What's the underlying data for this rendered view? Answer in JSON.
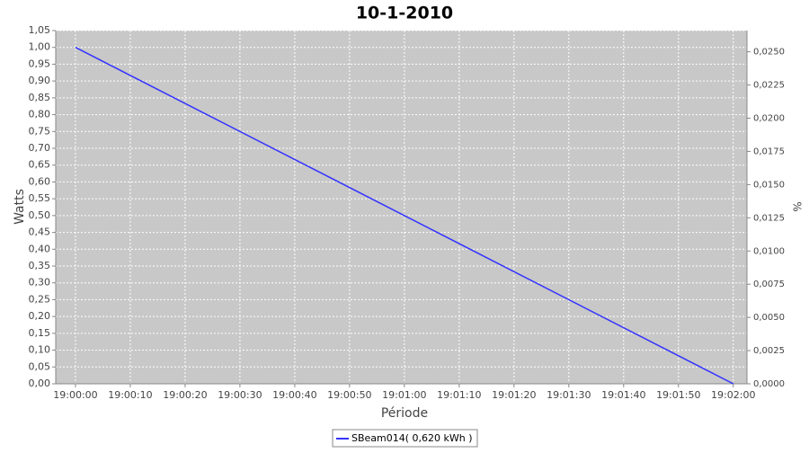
{
  "chart_data": {
    "type": "line",
    "title": "10-1-2010",
    "x_label": "Période",
    "y_label": "Watts",
    "y2_label": "%",
    "x": [
      "19:00:00",
      "19:02:00"
    ],
    "series": [
      {
        "name": "SBeam014( 0,620 kWh )",
        "color": "#3333ff",
        "values": [
          1.0,
          0.0
        ]
      }
    ],
    "xlim": [
      "18:59:56.4",
      "19:02:02.5"
    ],
    "xticks": [
      "19:00:00",
      "19:00:10",
      "19:00:20",
      "19:00:30",
      "19:00:40",
      "19:00:50",
      "19:01:00",
      "19:01:10",
      "19:01:20",
      "19:01:30",
      "19:01:40",
      "19:01:50",
      "19:02:00"
    ],
    "ylim": [
      0,
      1.05
    ],
    "yticks": [
      {
        "value": 0,
        "label": "0,00"
      },
      {
        "value": 0.05,
        "label": "0,05"
      },
      {
        "value": 0.1,
        "label": "0,10"
      },
      {
        "value": 0.15,
        "label": "0,15"
      },
      {
        "value": 0.2,
        "label": "0,20"
      },
      {
        "value": 0.25,
        "label": "0,25"
      },
      {
        "value": 0.3,
        "label": "0,30"
      },
      {
        "value": 0.35,
        "label": "0,35"
      },
      {
        "value": 0.4,
        "label": "0,40"
      },
      {
        "value": 0.45,
        "label": "0,45"
      },
      {
        "value": 0.5,
        "label": "0,50"
      },
      {
        "value": 0.55,
        "label": "0,55"
      },
      {
        "value": 0.6,
        "label": "0,60"
      },
      {
        "value": 0.65,
        "label": "0,65"
      },
      {
        "value": 0.7,
        "label": "0,70"
      },
      {
        "value": 0.75,
        "label": "0,75"
      },
      {
        "value": 0.8,
        "label": "0,80"
      },
      {
        "value": 0.85,
        "label": "0,85"
      },
      {
        "value": 0.9,
        "label": "0,90"
      },
      {
        "value": 0.95,
        "label": "0,95"
      },
      {
        "value": 1.0,
        "label": "1,00"
      },
      {
        "value": 1.05,
        "label": "1,05"
      }
    ],
    "y2lim": [
      0,
      0.0266
    ],
    "y2ticks": [
      {
        "value": 0,
        "label": "0,0000"
      },
      {
        "value": 0.0025,
        "label": "0,0025"
      },
      {
        "value": 0.005,
        "label": "0,0050"
      },
      {
        "value": 0.0075,
        "label": "0,0075"
      },
      {
        "value": 0.01,
        "label": "0,0100"
      },
      {
        "value": 0.0125,
        "label": "0,0125"
      },
      {
        "value": 0.015,
        "label": "0,0150"
      },
      {
        "value": 0.0175,
        "label": "0,0175"
      },
      {
        "value": 0.02,
        "label": "0,0200"
      },
      {
        "value": 0.0225,
        "label": "0,0225"
      },
      {
        "value": 0.025,
        "label": "0,0250"
      }
    ],
    "grid": true,
    "legend": "bottom"
  }
}
